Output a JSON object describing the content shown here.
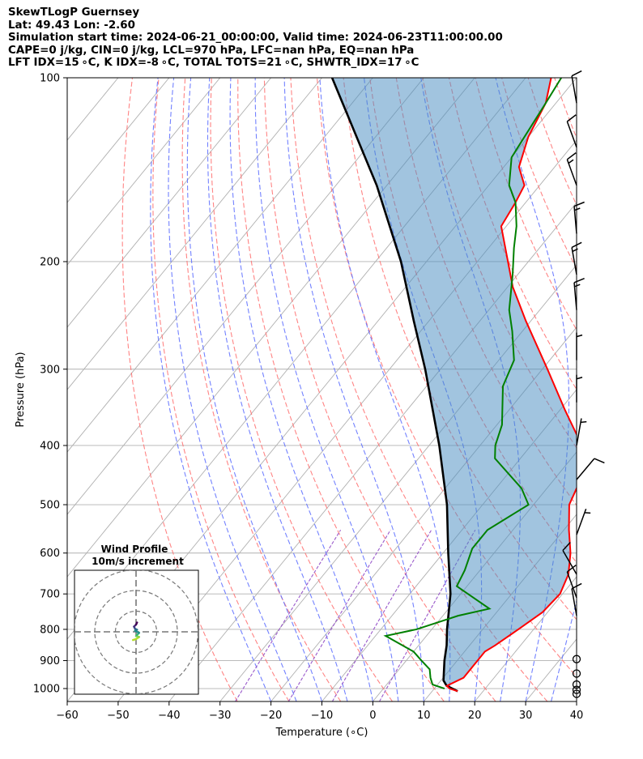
{
  "header": {
    "line1": "SkewTLogP Guernsey",
    "line2": "Lat: 49.43   Lon: -2.60",
    "line3": "Simulation start time: 2024-06-21_00:00:00, Valid time: 2024-06-23T11:00:00.00",
    "line4": "CAPE=0 j/kg, CIN=0 j/kg, LCL=970 hPa, LFC=nan hPa, EQ=nan hPa",
    "line5": "LFT IDX=15 ∘C, K IDX=-8 ∘C, TOTAL TOTS=21 ∘C, SHWTR_IDX=17 ∘C"
  },
  "colors": {
    "temperature": "#ff0000",
    "dewpoint": "#008000",
    "parcel": "#000000",
    "cape_fill": "#4b8ec1",
    "dry_adiabat": "#ff6f6f",
    "moist_adiabat": "#5b6cff",
    "mixing_ratio": "#9a5acb",
    "isotherm": "#b0b0b0"
  },
  "chart_data": {
    "type": "skew-t",
    "title": "",
    "xlabel": "Temperature (∘C)",
    "ylabel": "Pressure (hPa)",
    "xlim": [
      -60,
      40
    ],
    "ylim": [
      1050,
      100
    ],
    "x_ticks": [
      "−60",
      "−50",
      "−40",
      "−30",
      "−20",
      "−10",
      "0",
      "10",
      "20",
      "30",
      "40"
    ],
    "y_ticks": [
      "100",
      "200",
      "300",
      "400",
      "500",
      "600",
      "700",
      "800",
      "900",
      "1000"
    ],
    "grid": true,
    "temperature_profile": [
      {
        "p": 1010,
        "t": 15.0
      },
      {
        "p": 1000,
        "t": 13.0
      },
      {
        "p": 990,
        "t": 12.0
      },
      {
        "p": 960,
        "t": 14.0
      },
      {
        "p": 900,
        "t": 14.0
      },
      {
        "p": 870,
        "t": 14.0
      },
      {
        "p": 850,
        "t": 15.0
      },
      {
        "p": 800,
        "t": 17.0
      },
      {
        "p": 750,
        "t": 19.0
      },
      {
        "p": 700,
        "t": 19.5
      },
      {
        "p": 650,
        "t": 18.0
      },
      {
        "p": 600,
        "t": 15.0
      },
      {
        "p": 550,
        "t": 11.0
      },
      {
        "p": 500,
        "t": 7.0
      },
      {
        "p": 450,
        "t": 5.0
      },
      {
        "p": 400,
        "t": 0.0
      },
      {
        "p": 350,
        "t": -9.0
      },
      {
        "p": 300,
        "t": -19.0
      },
      {
        "p": 250,
        "t": -31.0
      },
      {
        "p": 220,
        "t": -39.0
      },
      {
        "p": 200,
        "t": -44.0
      },
      {
        "p": 175,
        "t": -51.0
      },
      {
        "p": 160,
        "t": -52.0
      },
      {
        "p": 150,
        "t": -53.0
      },
      {
        "p": 140,
        "t": -57.0
      },
      {
        "p": 125,
        "t": -60.0
      },
      {
        "p": 110,
        "t": -62.0
      },
      {
        "p": 100,
        "t": -65.0
      }
    ],
    "dewpoint_profile": [
      {
        "p": 1000,
        "t": 12.0
      },
      {
        "p": 985,
        "t": 9.0
      },
      {
        "p": 960,
        "t": 7.5
      },
      {
        "p": 930,
        "t": 6.0
      },
      {
        "p": 900,
        "t": 3.0
      },
      {
        "p": 870,
        "t": 0.0
      },
      {
        "p": 820,
        "t": -8.0
      },
      {
        "p": 800,
        "t": -3.0
      },
      {
        "p": 760,
        "t": 3.0
      },
      {
        "p": 740,
        "t": 8.0
      },
      {
        "p": 680,
        "t": -2.0
      },
      {
        "p": 640,
        "t": -3.0
      },
      {
        "p": 590,
        "t": -5.0
      },
      {
        "p": 550,
        "t": -5.0
      },
      {
        "p": 500,
        "t": -1.0
      },
      {
        "p": 470,
        "t": -5.0
      },
      {
        "p": 420,
        "t": -15.0
      },
      {
        "p": 400,
        "t": -17.0
      },
      {
        "p": 370,
        "t": -19.0
      },
      {
        "p": 320,
        "t": -25.0
      },
      {
        "p": 290,
        "t": -27.0
      },
      {
        "p": 260,
        "t": -32.0
      },
      {
        "p": 240,
        "t": -36.0
      },
      {
        "p": 210,
        "t": -41.0
      },
      {
        "p": 190,
        "t": -45.0
      },
      {
        "p": 175,
        "t": -48.0
      },
      {
        "p": 160,
        "t": -52.0
      },
      {
        "p": 150,
        "t": -56.0
      },
      {
        "p": 135,
        "t": -60.0
      },
      {
        "p": 110,
        "t": -62.0
      },
      {
        "p": 100,
        "t": -63.0
      }
    ],
    "parcel_profile": [
      {
        "p": 1010,
        "t": 15.0
      },
      {
        "p": 990,
        "t": 12.0
      },
      {
        "p": 970,
        "t": 10.5
      },
      {
        "p": 900,
        "t": 7.5
      },
      {
        "p": 850,
        "t": 5.5
      },
      {
        "p": 800,
        "t": 3.0
      },
      {
        "p": 700,
        "t": -2.0
      },
      {
        "p": 600,
        "t": -9.0
      },
      {
        "p": 500,
        "t": -17.0
      },
      {
        "p": 400,
        "t": -28.0
      },
      {
        "p": 300,
        "t": -43.0
      },
      {
        "p": 250,
        "t": -53.0
      },
      {
        "p": 200,
        "t": -65.0
      },
      {
        "p": 150,
        "t": -82.0
      },
      {
        "p": 100,
        "t": -108.0
      }
    ],
    "wind_barbs": [
      {
        "p": 1020,
        "speed_kt": 0
      },
      {
        "p": 1005,
        "speed_kt": 0
      },
      {
        "p": 985,
        "speed_kt": 0
      },
      {
        "p": 945,
        "speed_kt": 0
      },
      {
        "p": 895,
        "speed_kt": 0
      },
      {
        "p": 760,
        "speed_kt": 10,
        "dir": 350
      },
      {
        "p": 710,
        "speed_kt": 10,
        "dir": 340
      },
      {
        "p": 650,
        "speed_kt": 10,
        "dir": 330
      },
      {
        "p": 560,
        "speed_kt": 5,
        "dir": 20
      },
      {
        "p": 455,
        "speed_kt": 10,
        "dir": 40
      },
      {
        "p": 400,
        "speed_kt": 5,
        "dir": 10
      },
      {
        "p": 340,
        "speed_kt": 5,
        "dir": 0
      },
      {
        "p": 290,
        "speed_kt": 5,
        "dir": 0
      },
      {
        "p": 240,
        "speed_kt": 15,
        "dir": 355
      },
      {
        "p": 210,
        "speed_kt": 15,
        "dir": 350
      },
      {
        "p": 180,
        "speed_kt": 15,
        "dir": 355
      },
      {
        "p": 150,
        "speed_kt": 15,
        "dir": 340
      },
      {
        "p": 130,
        "speed_kt": 10,
        "dir": 340
      },
      {
        "p": 110,
        "speed_kt": 10,
        "dir": 350
      }
    ],
    "hodograph": {
      "title": "Wind Profile",
      "subtitle": "10m/s increment",
      "rings_ms": [
        10,
        20,
        30
      ],
      "trace": [
        {
          "u": -1.5,
          "v": -4.0
        },
        {
          "u": 0.0,
          "v": -3.5
        },
        {
          "u": 1.5,
          "v": -2.5
        },
        {
          "u": 0.0,
          "v": -2.0
        },
        {
          "u": 0.5,
          "v": -1.5
        },
        {
          "u": 1.5,
          "v": -0.5
        },
        {
          "u": -0.5,
          "v": 0.5
        },
        {
          "u": 0.5,
          "v": 1.0
        },
        {
          "u": -0.5,
          "v": 1.5
        },
        {
          "u": -1.0,
          "v": 2.5
        },
        {
          "u": 0.0,
          "v": 3.5
        },
        {
          "u": 0.5,
          "v": 4.5
        }
      ]
    }
  }
}
